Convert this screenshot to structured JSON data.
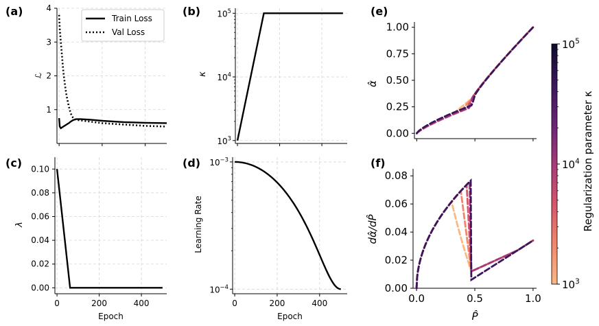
{
  "chart_data": [
    {
      "panel": "(a)",
      "type": "line",
      "xlabel": "",
      "ylabel": "ℒ",
      "xlim": [
        -10,
        500
      ],
      "ylim": [
        0.0,
        4.0
      ],
      "yticks": [
        "1",
        "2",
        "3",
        "4"
      ],
      "xticks": [
        0,
        200,
        400
      ],
      "legend": "top-right",
      "series": [
        {
          "name": "Train Loss",
          "style": "solid",
          "x": [
            0,
            3,
            8,
            15,
            25,
            35,
            45,
            55,
            65,
            80,
            100,
            150,
            200,
            300,
            400,
            500
          ],
          "y": [
            0.75,
            0.5,
            0.45,
            0.48,
            0.52,
            0.56,
            0.6,
            0.65,
            0.69,
            0.72,
            0.72,
            0.7,
            0.67,
            0.63,
            0.61,
            0.6
          ]
        },
        {
          "name": "Val Loss",
          "style": "dotted",
          "x": [
            0,
            3,
            8,
            12,
            16,
            20,
            25,
            30,
            35,
            40,
            45,
            50,
            55,
            60,
            70,
            80,
            100,
            150,
            200,
            300,
            400,
            500
          ],
          "y": [
            3.8,
            3.4,
            3.0,
            2.7,
            2.4,
            2.1,
            1.85,
            1.6,
            1.4,
            1.25,
            1.1,
            0.98,
            0.88,
            0.8,
            0.72,
            0.7,
            0.68,
            0.64,
            0.6,
            0.56,
            0.52,
            0.5
          ]
        }
      ]
    },
    {
      "panel": "(b)",
      "type": "line",
      "xlabel": "",
      "ylabel": "κ",
      "yscale": "log",
      "ylim": [
        900,
        120000
      ],
      "xlim": [
        -10,
        520
      ],
      "yticks": [
        "10",
        "10",
        "10"
      ],
      "ytick_exponents": [
        "3",
        "4",
        "5"
      ],
      "ytick_values": [
        1000,
        10000,
        100000
      ],
      "xticks": [
        0,
        200,
        400
      ],
      "series": [
        {
          "name": "",
          "x": [
            0,
            125,
            500
          ],
          "y": [
            1000,
            100000,
            100000
          ]
        }
      ]
    },
    {
      "panel": "(c)",
      "type": "line",
      "xlabel": "Epoch",
      "ylabel": "λ",
      "xlim": [
        -10,
        520
      ],
      "ylim": [
        -0.005,
        0.11
      ],
      "yticks": [
        "0.00",
        "0.02",
        "0.04",
        "0.06",
        "0.08",
        "0.10"
      ],
      "ytick_values": [
        0,
        0.02,
        0.04,
        0.06,
        0.08,
        0.1
      ],
      "xticks": [
        "0",
        "200",
        "400"
      ],
      "xtick_values": [
        0,
        200,
        400
      ],
      "series": [
        {
          "name": "",
          "x": [
            0,
            62,
            500
          ],
          "y": [
            0.1,
            0.0,
            0.0
          ]
        }
      ]
    },
    {
      "panel": "(d)",
      "type": "line",
      "xlabel": "Epoch",
      "ylabel": "Learning Rate",
      "yscale": "log",
      "xlim": [
        -10,
        530
      ],
      "ylim": [
        9.2e-05,
        0.00109
      ],
      "yticks": [
        "10",
        "10"
      ],
      "ytick_exponents": [
        "−3",
        "−4"
      ],
      "ytick_values": [
        0.001,
        0.0001
      ],
      "xticks": [
        "0",
        "200",
        "400"
      ],
      "xtick_values": [
        0,
        200,
        400
      ],
      "series": [
        {
          "name": "",
          "schedule": "cosine",
          "lr_max": 0.001,
          "lr_min": 0.0001,
          "epochs": 500
        }
      ]
    },
    {
      "panel": "(e)",
      "type": "line",
      "xlabel": "",
      "ylabel": "α̂",
      "xlim": [
        -0.02,
        1.03
      ],
      "ylim": [
        -0.05,
        1.05
      ],
      "yticks": [
        "0.00",
        "0.25",
        "0.50",
        "0.75",
        "1.00"
      ],
      "ytick_values": [
        0,
        0.25,
        0.5,
        0.75,
        1.0
      ],
      "xticks": [
        0.0,
        0.5,
        1.0
      ],
      "series_note": "dashed curves colored by regularization parameter κ",
      "series": [
        {
          "kappa": 1000,
          "transition": 0.3,
          "color": "#fbb883"
        },
        {
          "kappa": 2700,
          "transition": 0.38,
          "color": "#f3866a"
        },
        {
          "kappa": 7500,
          "transition": 0.43,
          "color": "#d8546b"
        },
        {
          "kappa": 20000,
          "transition": 0.455,
          "color": "#a63a78"
        },
        {
          "kappa": 100000,
          "transition": 0.47,
          "color": "#3a175c"
        }
      ]
    },
    {
      "panel": "(f)",
      "type": "line",
      "xlabel": "P̂",
      "ylabel": "dα̂/dP̂",
      "xlim": [
        -0.03,
        1.03
      ],
      "ylim": [
        0.0,
        0.085
      ],
      "yticks": [
        "0.00",
        "0.02",
        "0.04",
        "0.06",
        "0.08"
      ],
      "ytick_values": [
        0,
        0.02,
        0.04,
        0.06,
        0.08
      ],
      "xticks": [
        "0.0",
        "0.5",
        "1.0"
      ],
      "xtick_values": [
        0,
        0.5,
        1.0
      ],
      "series": [
        {
          "kappa": 1000,
          "transition": 0.3,
          "color": "#fbb883"
        },
        {
          "kappa": 2700,
          "transition": 0.38,
          "color": "#f3866a"
        },
        {
          "kappa": 7500,
          "transition": 0.43,
          "color": "#d8546b"
        },
        {
          "kappa": 20000,
          "transition": 0.455,
          "color": "#a63a78"
        },
        {
          "kappa": 100000,
          "transition": 0.47,
          "color": "#3a175c"
        }
      ]
    }
  ],
  "colorbar": {
    "label": "Regularization parameter κ",
    "ticks": [
      "10",
      "10",
      "10"
    ],
    "tick_exponents": [
      "3",
      "4",
      "5"
    ],
    "tick_values": [
      1000,
      10000,
      100000
    ],
    "colors": [
      "#fbb883",
      "#f3866a",
      "#d8546b",
      "#a63a78",
      "#6a2476",
      "#3a175c",
      "#0e0b2b"
    ]
  }
}
